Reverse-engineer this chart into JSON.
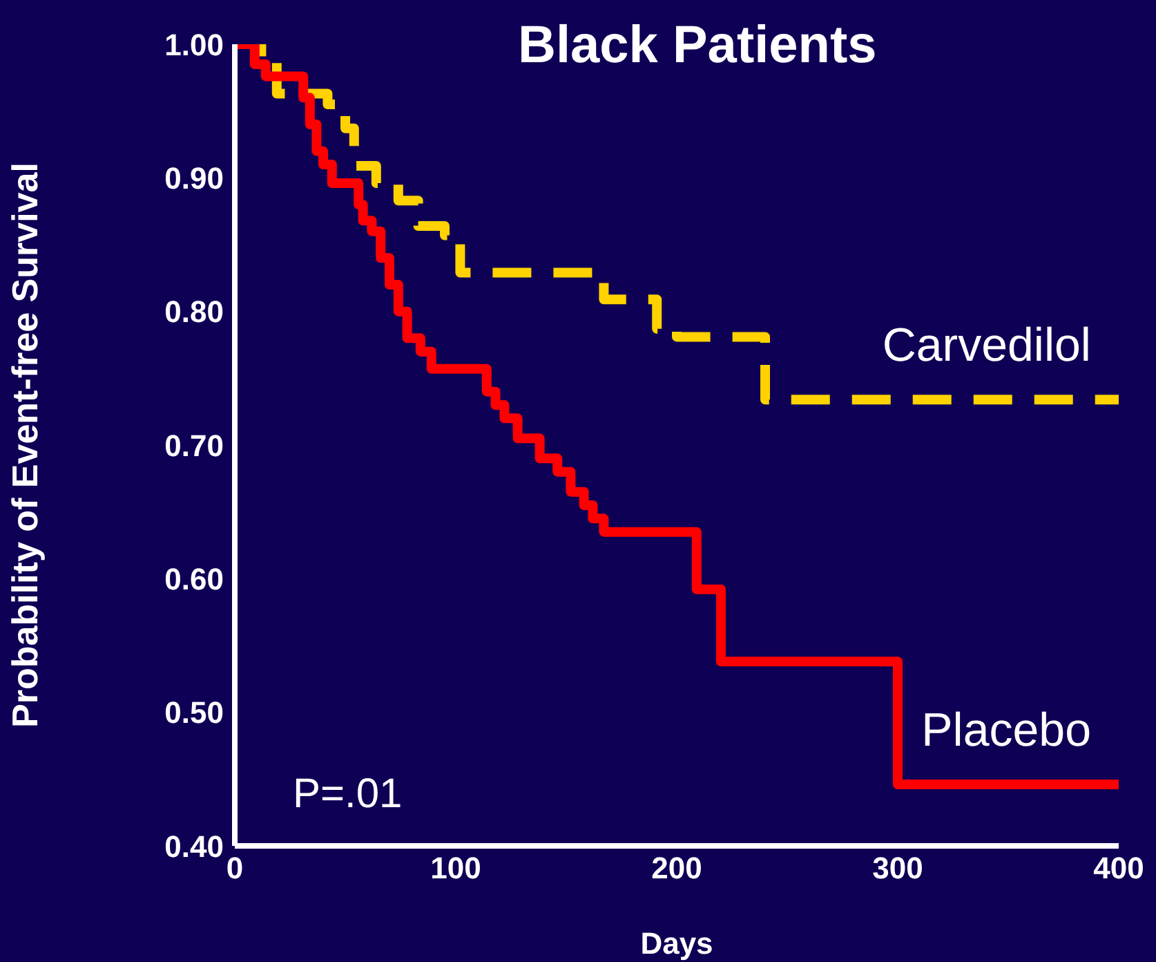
{
  "chart_data": {
    "type": "step",
    "title": "Black Patients",
    "xlabel": "Days",
    "ylabel": "Probability of Event-free Survival",
    "xlim": [
      0,
      400
    ],
    "xticks": [
      0,
      100,
      200,
      300,
      400
    ],
    "ylim": [
      0.4,
      1.0
    ],
    "yticks": [
      {
        "value": 0.4,
        "label": "0.40"
      },
      {
        "value": 0.5,
        "label": "0.50"
      },
      {
        "value": 0.6,
        "label": "0.60"
      },
      {
        "value": 0.7,
        "label": "0.70"
      },
      {
        "value": 0.8,
        "label": "0.80"
      },
      {
        "value": 0.9,
        "label": "0.90"
      },
      {
        "value": 1.0,
        "label": "1.00"
      }
    ],
    "marker": "none",
    "annotations": [
      "P=.01"
    ],
    "series": [
      {
        "name": "Carvedilol",
        "color": "#ffd200",
        "line_style": "dashed",
        "x": [
          0,
          12,
          19,
          42,
          50,
          54,
          64,
          74,
          83,
          95,
          102,
          167,
          191,
          200,
          240,
          400
        ],
        "values": [
          1.0,
          0.99,
          0.963,
          0.955,
          0.937,
          0.909,
          0.896,
          0.883,
          0.864,
          0.857,
          0.829,
          0.809,
          0.787,
          0.781,
          0.734,
          0.734
        ]
      },
      {
        "name": "Placebo",
        "color": "#ff0000",
        "line_style": "solid",
        "x": [
          0,
          9,
          14,
          31,
          34,
          37,
          40,
          44,
          56,
          58,
          62,
          66,
          70,
          74,
          78,
          84,
          89,
          114,
          118,
          122,
          128,
          138,
          146,
          152,
          158,
          162,
          167,
          209,
          220,
          300,
          400
        ],
        "values": [
          1.0,
          0.985,
          0.976,
          0.96,
          0.94,
          0.92,
          0.91,
          0.896,
          0.88,
          0.868,
          0.86,
          0.84,
          0.82,
          0.8,
          0.78,
          0.77,
          0.757,
          0.74,
          0.73,
          0.72,
          0.705,
          0.69,
          0.68,
          0.665,
          0.655,
          0.645,
          0.635,
          0.592,
          0.538,
          0.446,
          0.446
        ]
      }
    ]
  }
}
